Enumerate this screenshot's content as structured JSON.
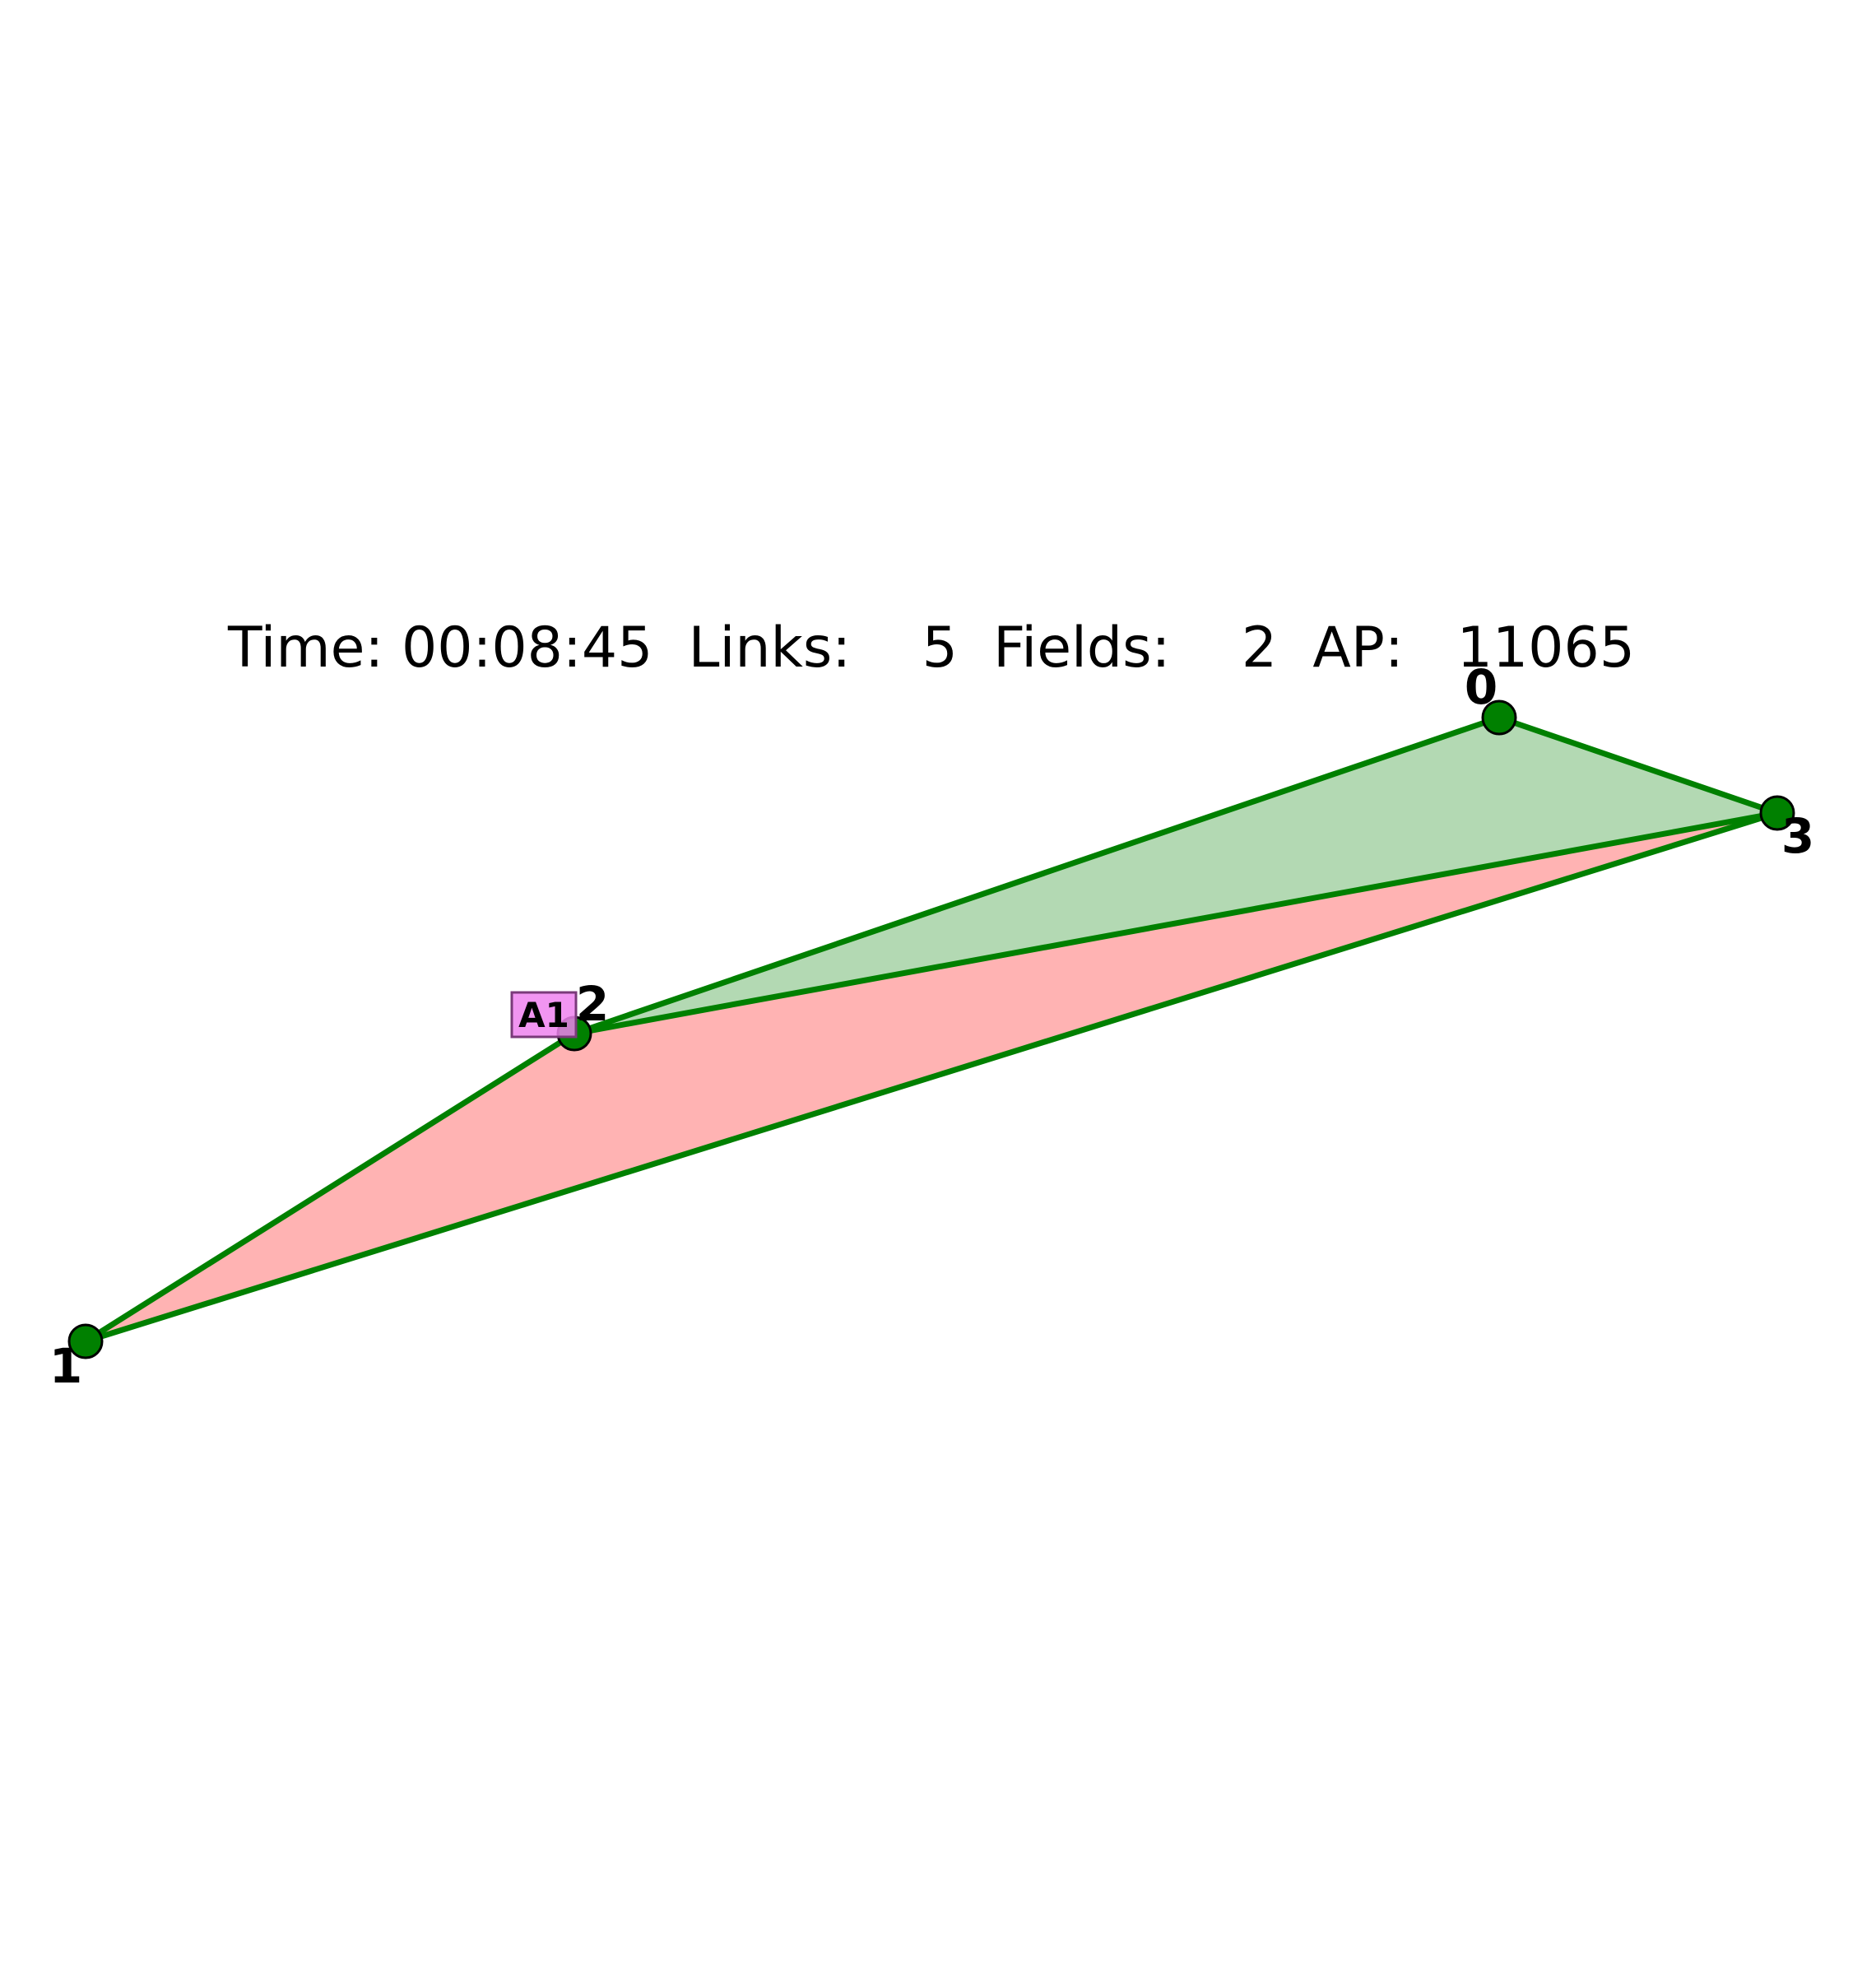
{
  "status": {
    "text": "Time: 00:08:45  Links:    5  Fields:    2  AP:   11065"
  },
  "colors": {
    "link": "#008000",
    "portal_fill": "#008000",
    "portal_edge": "#000000",
    "field_green": "#b3d9b3",
    "field_red": "#ffb3b3",
    "agent_fill": "#ee82ee",
    "agent_edge": "#7a3a7a"
  },
  "portals": [
    {
      "id": 0,
      "label": "0"
    },
    {
      "id": 1,
      "label": "1"
    },
    {
      "id": 2,
      "label": "2"
    },
    {
      "id": 3,
      "label": "3"
    }
  ],
  "links": [
    {
      "from": 0,
      "to": 2
    },
    {
      "from": 0,
      "to": 3
    },
    {
      "from": 2,
      "to": 3
    },
    {
      "from": 1,
      "to": 2
    },
    {
      "from": 1,
      "to": 3
    }
  ],
  "fields": [
    {
      "portals": [
        0,
        2,
        3
      ],
      "color": "green"
    },
    {
      "portals": [
        1,
        2,
        3
      ],
      "color": "red"
    }
  ],
  "agents": [
    {
      "label": "A1",
      "at_portal": 2
    }
  ]
}
